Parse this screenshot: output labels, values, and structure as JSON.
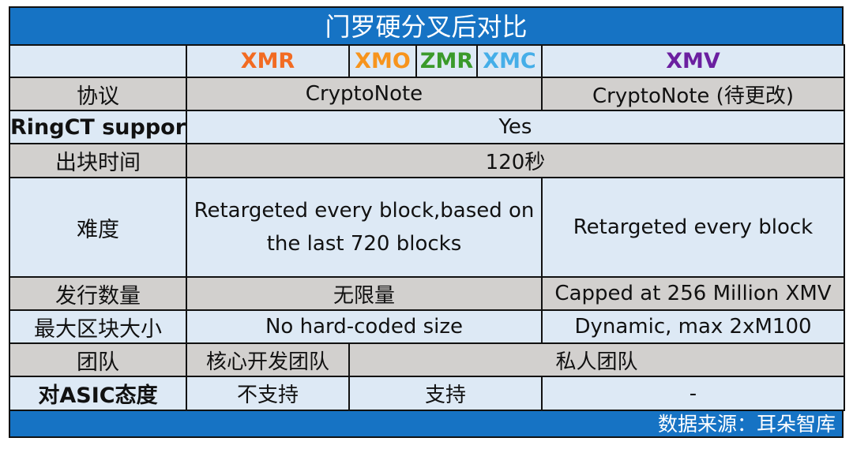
{
  "title": "门罗硬分叉后对比",
  "footer": "数据来源：耳朵智库",
  "colors": {
    "header_blue": "#1673c4",
    "row_light": "#dde9f5",
    "row_gray": "#d2d0ce",
    "XMR": "#f26b22",
    "XMO": "#f7941d",
    "ZMR": "#3a9a2b",
    "XMC": "#45aee8",
    "XMV": "#6b1fa0"
  },
  "coins": {
    "XMR": "XMR",
    "XMO": "XMO",
    "ZMR": "ZMR",
    "XMC": "XMC",
    "XMV": "XMV"
  },
  "rows": {
    "protocol": {
      "label": "协议",
      "left": "CryptoNote",
      "right": "CryptoNote (待更改)"
    },
    "ringct": {
      "label": "RingCT support",
      "value": "Yes"
    },
    "block_time": {
      "label": "出块时间",
      "value": "120秒"
    },
    "difficulty": {
      "label": "难度",
      "left": "Retargeted every block,based on the last 720 blocks",
      "right": "Retargeted every block"
    },
    "issuance": {
      "label": "发行数量",
      "left": "无限量",
      "right": "Capped at 256 Million XMV"
    },
    "max_block_size": {
      "label": "最大区块大小",
      "left": "No hard-coded size",
      "right": "Dynamic, max 2xM100"
    },
    "team": {
      "label": "团队",
      "left": "核心开发团队",
      "right": "私人团队"
    },
    "asic": {
      "label_prefix": "对",
      "label_asic": "ASIC",
      "label_suffix": "态度",
      "xmr": "不支持",
      "middle": "支持",
      "xmv": "-"
    }
  }
}
